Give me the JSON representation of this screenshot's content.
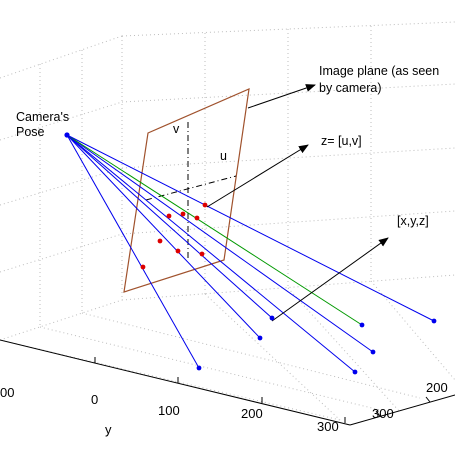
{
  "diagram": {
    "camera_label_line1": "Camera's",
    "camera_label_line2": "Pose",
    "image_plane_label_line1": "Image plane (as seen",
    "image_plane_label_line2": "by camera)",
    "z_label": "z= [u,v]",
    "xyz_label": "[x,y,z]",
    "u_label": "u",
    "v_label": "v"
  },
  "axes": {
    "y_label": "y",
    "y_ticks": [
      "00",
      "0",
      "100",
      "200",
      "300"
    ],
    "x_ticks": [
      "300",
      "200"
    ]
  },
  "colors": {
    "rays": "#0000ee",
    "highlight_ray": "#009900",
    "projected_points": "#dd0000",
    "plane_border": "#a0522d",
    "grid": "#bdbdbd"
  },
  "counts": {
    "rays": 8,
    "projected_points": 8
  }
}
